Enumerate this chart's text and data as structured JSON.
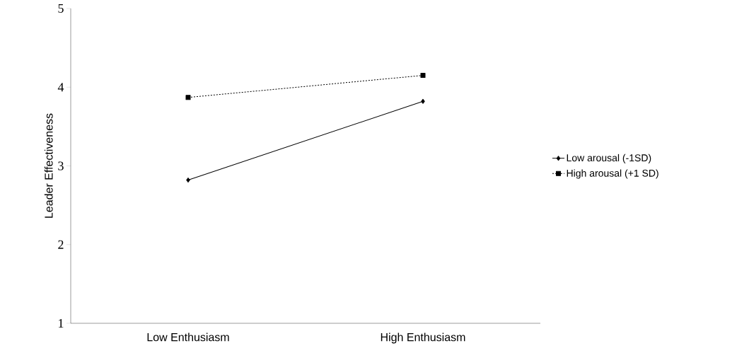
{
  "chart_data": {
    "type": "line",
    "ylabel": "Leader Effectiveness",
    "categories": [
      "Low Enthusiasm",
      "High Enthusiasm"
    ],
    "ylim": [
      1,
      5
    ],
    "yticks": [
      1,
      2,
      3,
      4,
      5
    ],
    "grid": false,
    "legend": "right",
    "series": [
      {
        "name": "Low arousal (-1SD)",
        "color": "#000000",
        "values": [
          2.82,
          3.82
        ],
        "marker": "diamond",
        "line_style": "solid"
      },
      {
        "name": "High arousal (+1 SD)",
        "color": "#000000",
        "values": [
          3.87,
          4.15
        ],
        "marker": "square",
        "line_style": "dotted"
      }
    ]
  }
}
